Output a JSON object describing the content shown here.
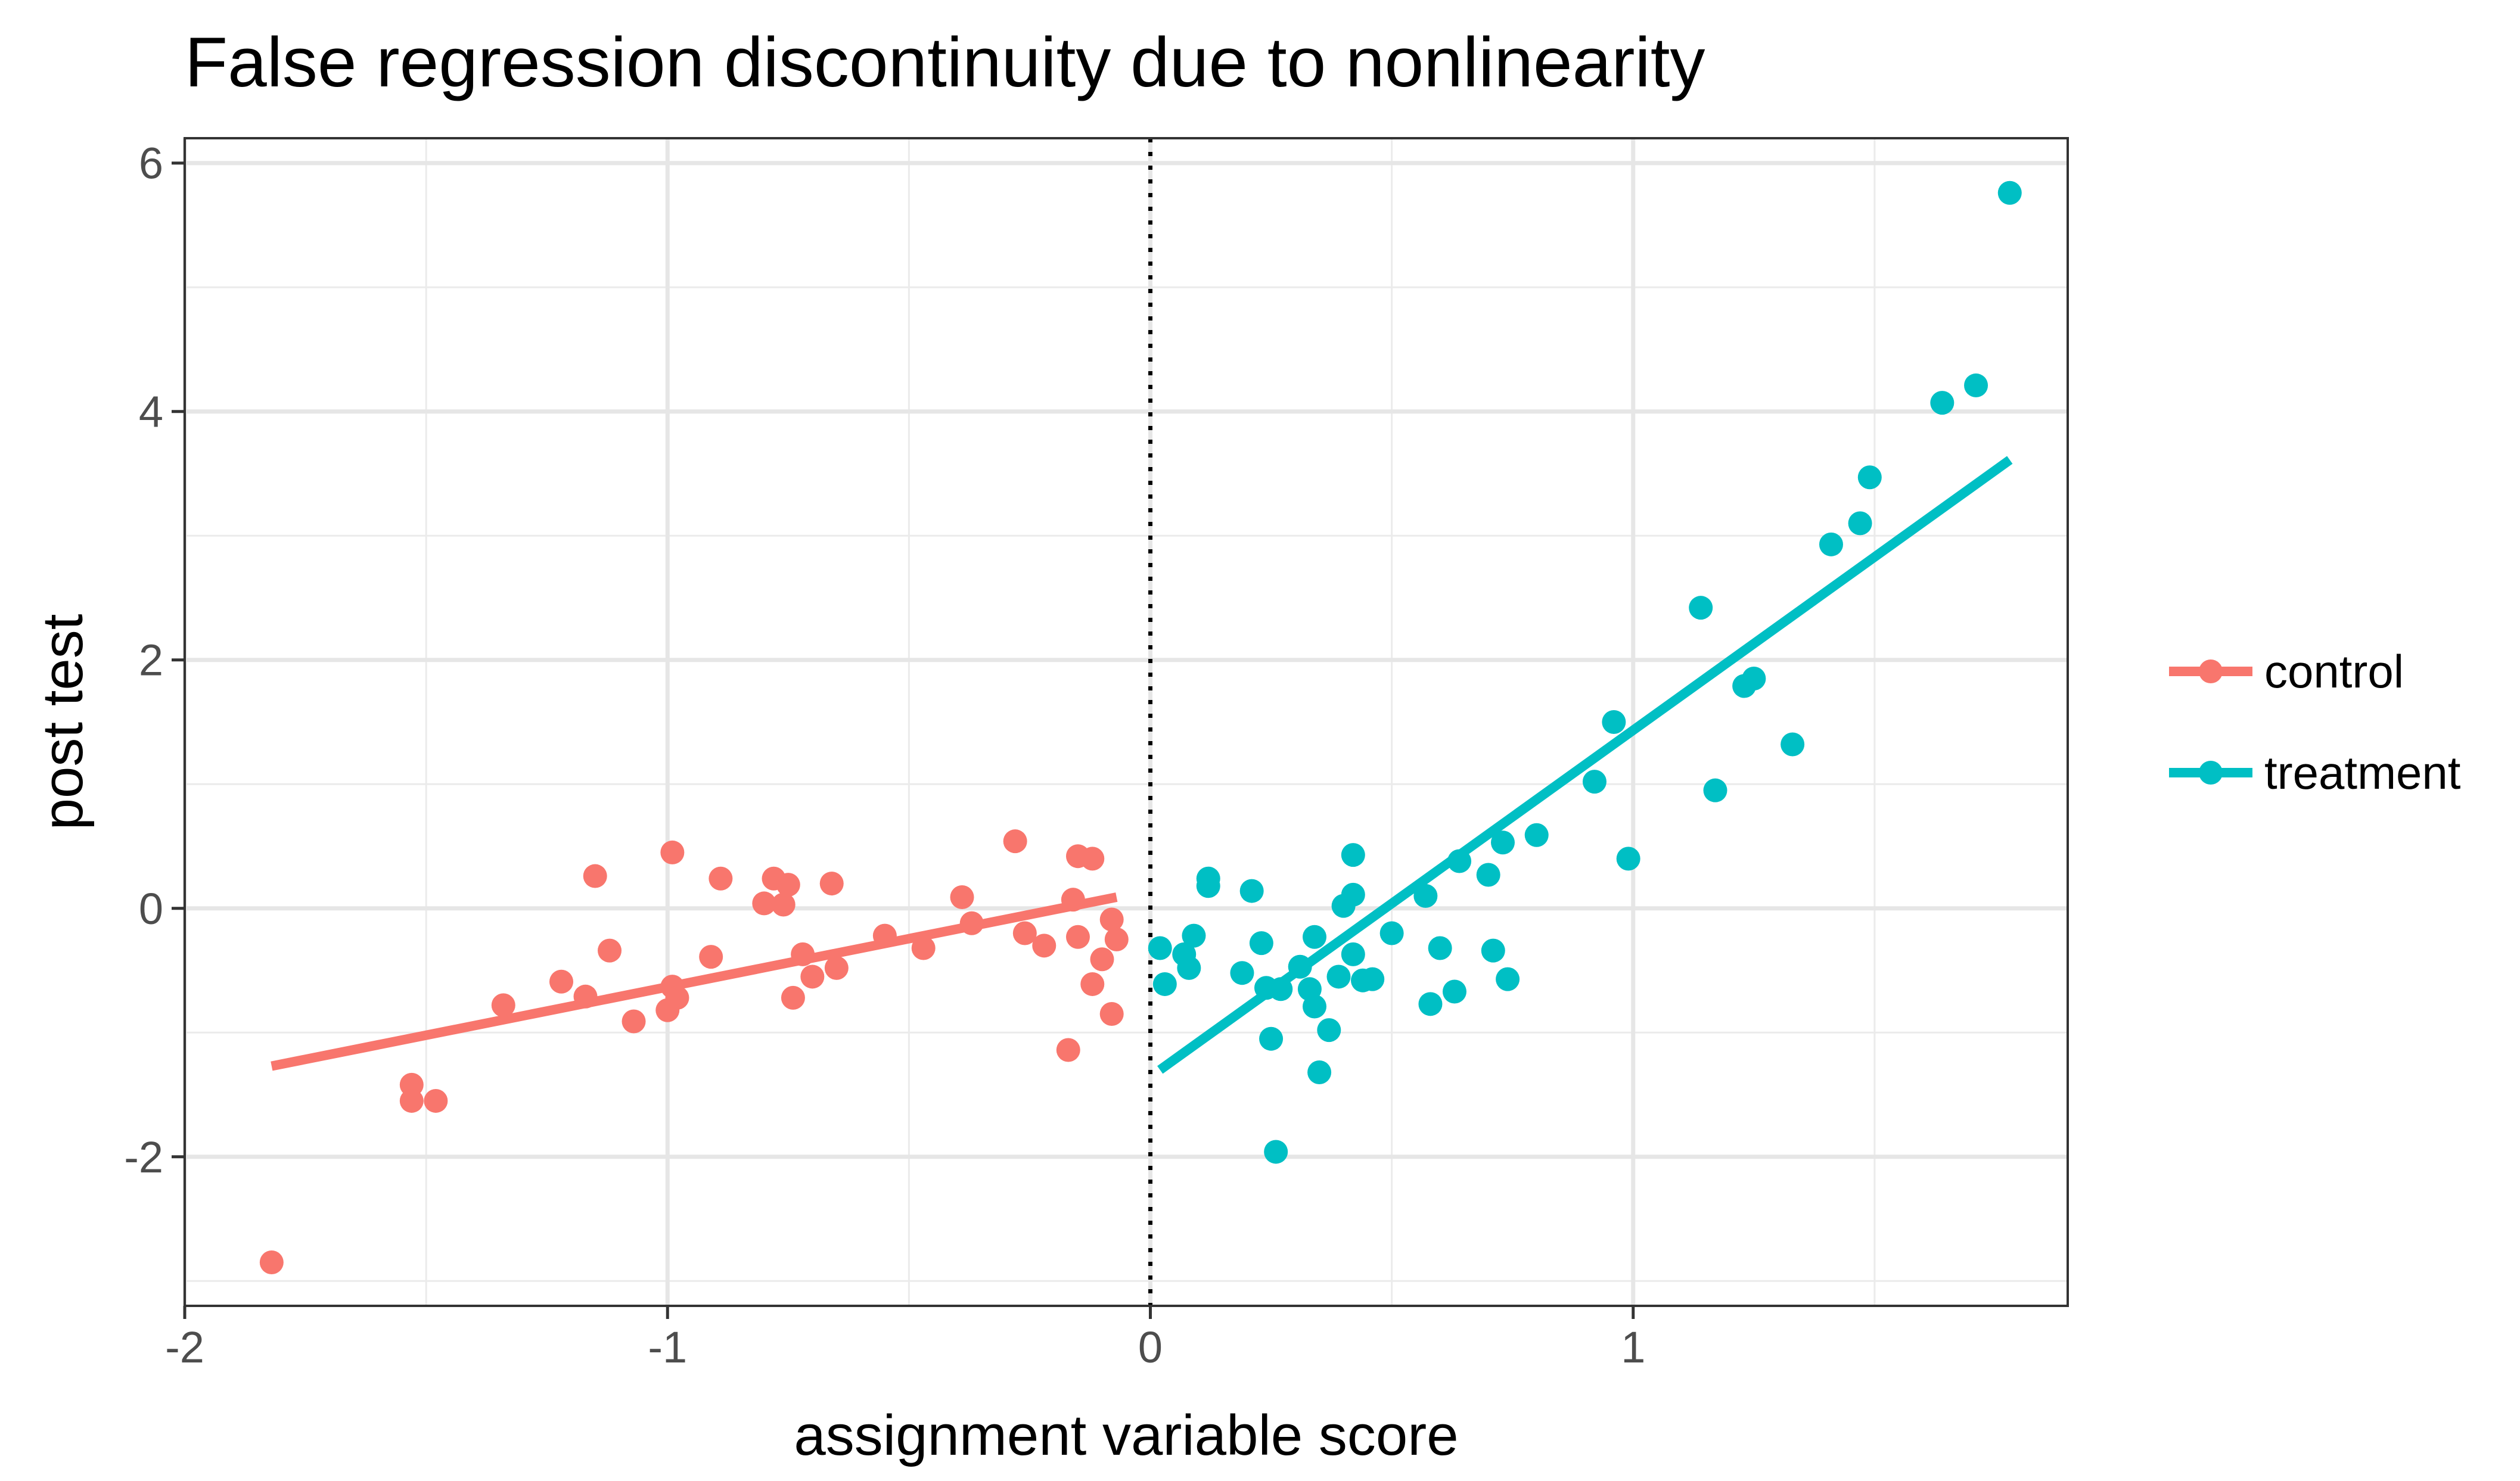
{
  "chart_data": {
    "type": "scatter",
    "title": "False regression discontinuity due to nonlinearity",
    "xlabel": "assignment variable score",
    "ylabel": "post test",
    "xlim": [
      -2,
      1.9
    ],
    "ylim": [
      -3.2,
      6.2
    ],
    "x_ticks": [
      -2,
      -1,
      0,
      1
    ],
    "x_tick_labels": [
      "-2",
      "-1",
      "0",
      "1"
    ],
    "y_ticks": [
      -2,
      0,
      2,
      4,
      6
    ],
    "y_tick_labels": [
      "-2",
      "0",
      "2",
      "4",
      "6"
    ],
    "grid": true,
    "cutoff_line": {
      "x": 0,
      "style": "dotted"
    },
    "legend": {
      "position": "right"
    },
    "series": [
      {
        "name": "control",
        "color": "#F8766D",
        "points": [
          [
            -1.82,
            -2.85
          ],
          [
            -1.53,
            -1.42
          ],
          [
            -1.53,
            -1.55
          ],
          [
            -1.48,
            -1.55
          ],
          [
            -1.34,
            -0.78
          ],
          [
            -1.22,
            -0.59
          ],
          [
            -1.17,
            -0.71
          ],
          [
            -1.15,
            0.26
          ],
          [
            -1.12,
            -0.34
          ],
          [
            -1.07,
            -0.91
          ],
          [
            -1.0,
            -0.82
          ],
          [
            -0.99,
            0.45
          ],
          [
            -0.99,
            -0.63
          ],
          [
            -0.98,
            -0.72
          ],
          [
            -0.91,
            -0.39
          ],
          [
            -0.89,
            0.24
          ],
          [
            -0.8,
            0.04
          ],
          [
            -0.78,
            0.24
          ],
          [
            -0.76,
            0.03
          ],
          [
            -0.75,
            0.19
          ],
          [
            -0.74,
            -0.72
          ],
          [
            -0.72,
            -0.37
          ],
          [
            -0.7,
            -0.55
          ],
          [
            -0.66,
            0.2
          ],
          [
            -0.65,
            -0.48
          ],
          [
            -0.55,
            -0.22
          ],
          [
            -0.47,
            -0.32
          ],
          [
            -0.39,
            0.09
          ],
          [
            -0.37,
            -0.12
          ],
          [
            -0.28,
            0.54
          ],
          [
            -0.26,
            -0.2
          ],
          [
            -0.22,
            -0.3
          ],
          [
            -0.17,
            -1.14
          ],
          [
            -0.16,
            0.07
          ],
          [
            -0.15,
            -0.23
          ],
          [
            -0.15,
            0.42
          ],
          [
            -0.12,
            0.4
          ],
          [
            -0.12,
            -0.61
          ],
          [
            -0.1,
            -0.41
          ],
          [
            -0.08,
            -0.85
          ],
          [
            -0.08,
            -0.09
          ],
          [
            -0.07,
            -0.25
          ]
        ],
        "fit_line": [
          [
            -1.82,
            -1.27
          ],
          [
            -0.07,
            0.09
          ]
        ]
      },
      {
        "name": "treatment",
        "color": "#00BFC4",
        "points": [
          [
            0.02,
            -0.32
          ],
          [
            0.03,
            -0.61
          ],
          [
            0.07,
            -0.37
          ],
          [
            0.08,
            -0.48
          ],
          [
            0.09,
            -0.22
          ],
          [
            0.12,
            0.18
          ],
          [
            0.12,
            0.24
          ],
          [
            0.19,
            -0.52
          ],
          [
            0.21,
            0.14
          ],
          [
            0.23,
            -0.28
          ],
          [
            0.24,
            -0.64
          ],
          [
            0.25,
            -1.05
          ],
          [
            0.26,
            -1.96
          ],
          [
            0.27,
            -0.65
          ],
          [
            0.31,
            -0.47
          ],
          [
            0.33,
            -0.65
          ],
          [
            0.34,
            -0.79
          ],
          [
            0.34,
            -0.23
          ],
          [
            0.35,
            -1.32
          ],
          [
            0.37,
            -0.98
          ],
          [
            0.39,
            -0.55
          ],
          [
            0.4,
            0.02
          ],
          [
            0.42,
            0.43
          ],
          [
            0.42,
            -0.37
          ],
          [
            0.42,
            0.11
          ],
          [
            0.44,
            -0.58
          ],
          [
            0.46,
            -0.57
          ],
          [
            0.5,
            -0.2
          ],
          [
            0.57,
            0.1
          ],
          [
            0.58,
            -0.77
          ],
          [
            0.6,
            -0.32
          ],
          [
            0.63,
            -0.67
          ],
          [
            0.64,
            0.38
          ],
          [
            0.7,
            0.27
          ],
          [
            0.71,
            -0.34
          ],
          [
            0.73,
            0.53
          ],
          [
            0.74,
            -0.57
          ],
          [
            0.8,
            0.59
          ],
          [
            0.92,
            1.02
          ],
          [
            0.96,
            1.5
          ],
          [
            0.99,
            0.4
          ],
          [
            1.14,
            2.42
          ],
          [
            1.17,
            0.95
          ],
          [
            1.23,
            1.79
          ],
          [
            1.25,
            1.85
          ],
          [
            1.33,
            1.32
          ],
          [
            1.41,
            2.93
          ],
          [
            1.47,
            3.1
          ],
          [
            1.49,
            3.47
          ],
          [
            1.64,
            4.07
          ],
          [
            1.71,
            4.21
          ],
          [
            1.78,
            5.76
          ]
        ],
        "fit_line": [
          [
            0.02,
            -1.3
          ],
          [
            1.78,
            3.61
          ]
        ]
      }
    ]
  }
}
